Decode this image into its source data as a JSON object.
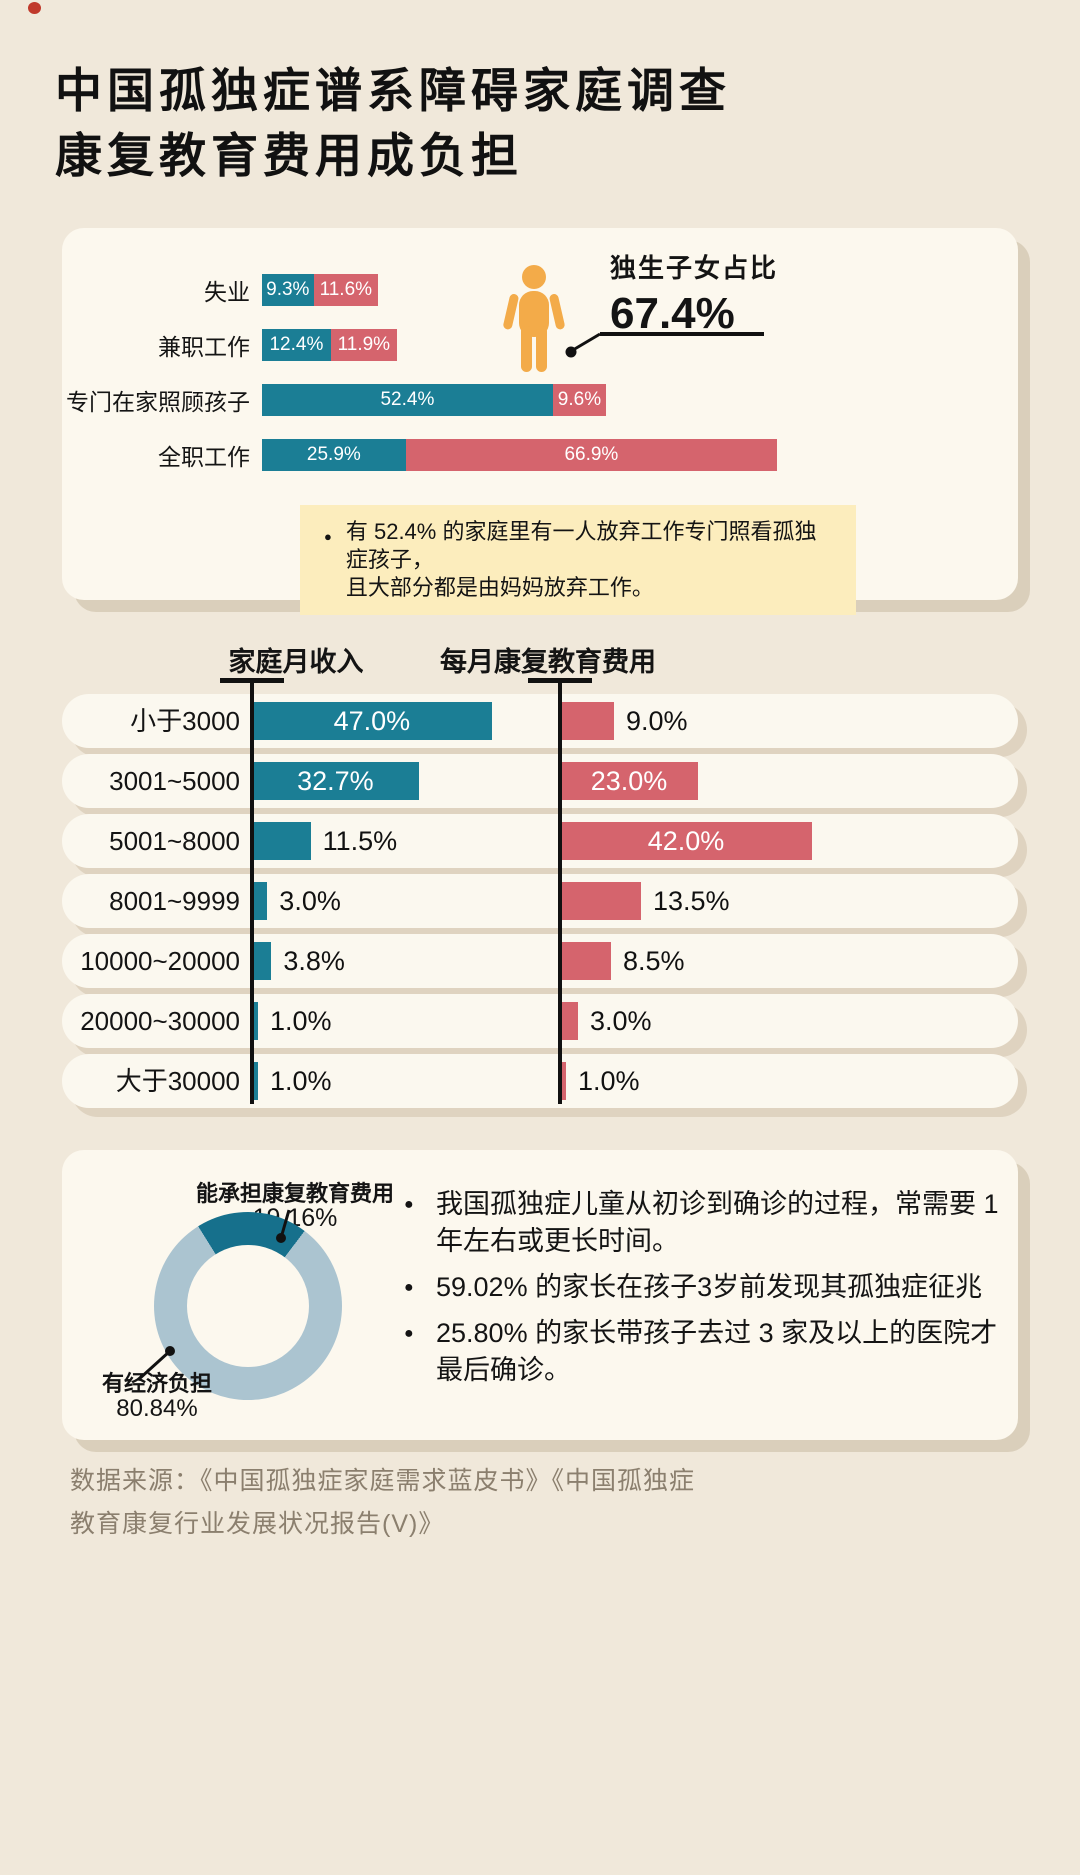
{
  "title": {
    "line1": "中国孤独症谱系障碍家庭调查",
    "line2": "康复教育费用成负担"
  },
  "only_child": {
    "label": "独生子女占比",
    "value": "67.4%"
  },
  "note": {
    "line1": "有 52.4% 的家庭里有一人放弃工作专门照看孤独症孩子，",
    "line2": "且大部分都是由妈妈放弃工作。"
  },
  "facts": [
    "我国孤独症儿童从初诊到确诊的过程，常需要 1 年左右或更长时间。",
    "59.02% 的家长在孩子3岁前发现其孤独症征兆",
    "25.80% 的家长带孩子去过 3 家及以上的医院才最后确诊。"
  ],
  "source": {
    "line1": "数据来源：《中国孤独症家庭需求蓝皮书》《中国孤独症",
    "line2": "教育康复行业发展状况报告(V)》"
  },
  "colors": {
    "background": "#f0e8da",
    "card": "#fcf8ee",
    "teal": "#1b7e95",
    "rose": "#d5646d",
    "orange": "#f3ab49",
    "note_bg": "#fcedbd",
    "donut_dark": "#16708c",
    "donut_light": "#abc4d0",
    "text": "#141414",
    "source_text": "#8b7f6e"
  },
  "chart_data": [
    {
      "id": "parent-employment",
      "type": "bar",
      "orientation": "horizontal-stacked",
      "unit": "%",
      "xlim": [
        0,
        100
      ],
      "categories": [
        "失业",
        "兼职工作",
        "专门在家照顾孩子",
        "全职工作"
      ],
      "series": [
        {
          "name": "teal-series",
          "color": "#1b7e95",
          "values": [
            9.3,
            12.4,
            52.4,
            25.9
          ],
          "labels": [
            "9.3%",
            "12.4%",
            "52.4%",
            "25.9%"
          ]
        },
        {
          "name": "rose-series",
          "color": "#d5646d",
          "values": [
            11.6,
            11.9,
            9.6,
            66.9
          ],
          "labels": [
            "11.6%",
            "11.9%",
            "9.6%",
            "66.9%"
          ]
        }
      ]
    },
    {
      "id": "income-vs-rehab-cost",
      "type": "bar",
      "orientation": "horizontal-paired",
      "unit": "%",
      "left_title": "家庭月收入",
      "right_title": "每月康复教育费用",
      "categories": [
        "小于3000",
        "3001~5000",
        "5001~8000",
        "8001~9999",
        "10000~20000",
        "20000~30000",
        "大于30000"
      ],
      "series": [
        {
          "name": "family-monthly-income",
          "color": "#1b7e95",
          "values": [
            47.0,
            32.7,
            11.5,
            3.0,
            3.8,
            1.0,
            1.0
          ],
          "labels": [
            "47.0%",
            "32.7%",
            "11.5%",
            "3.0%",
            "3.8%",
            "1.0%",
            "1.0%"
          ]
        },
        {
          "name": "monthly-rehab-cost",
          "color": "#d5646d",
          "values": [
            9.0,
            23.0,
            42.0,
            13.5,
            8.5,
            3.0,
            1.0
          ],
          "labels": [
            "9.0%",
            "23.0%",
            "42.0%",
            "13.5%",
            "8.5%",
            "3.0%",
            "1.0%"
          ]
        }
      ]
    },
    {
      "id": "affordability-donut",
      "type": "pie",
      "slices": [
        {
          "label": "能承担康复教育费用",
          "value": 19.16,
          "display": "19.16%",
          "color": "#16708c"
        },
        {
          "label": "有经济负担",
          "value": 80.84,
          "display": "80.84%",
          "color": "#abc4d0"
        }
      ]
    }
  ]
}
